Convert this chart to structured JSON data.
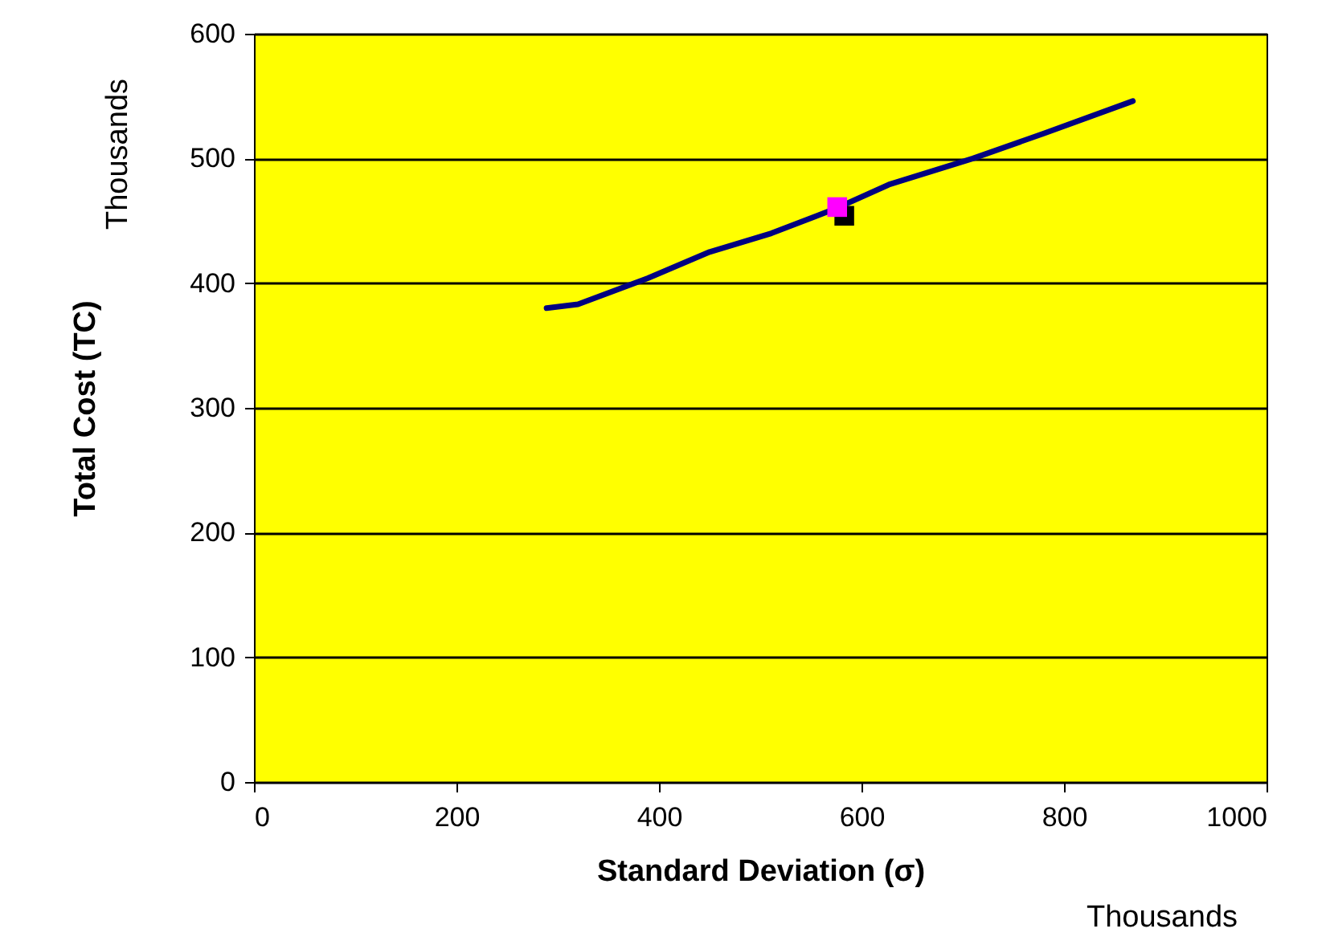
{
  "chart_data": {
    "type": "line",
    "xlabel": "Standard Deviation (σ)",
    "ylabel": "Total Cost (TC)",
    "annotations": [
      "Thousands",
      "Thousands"
    ],
    "xlim": [
      0,
      1000
    ],
    "xticks": [
      0,
      200,
      400,
      600,
      800,
      1000
    ],
    "ylim": [
      0,
      600
    ],
    "yticks": [
      0,
      100,
      200,
      300,
      400,
      500,
      600
    ],
    "grid": "y",
    "series": [
      {
        "color": "#000080",
        "marker": "none",
        "x": [
          289,
          320,
          389,
          450,
          511,
          575,
          627,
          710,
          780,
          868
        ],
        "values": [
          380,
          383,
          404,
          425,
          440,
          460,
          479,
          500,
          520,
          546
        ]
      },
      {
        "type": "scatter",
        "color": "#000000",
        "marker": "square",
        "x": [
          583
        ],
        "values": [
          454
        ]
      },
      {
        "type": "scatter",
        "color": "#ff00ff",
        "marker": "square",
        "x": [
          576
        ],
        "values": [
          461
        ]
      }
    ]
  }
}
